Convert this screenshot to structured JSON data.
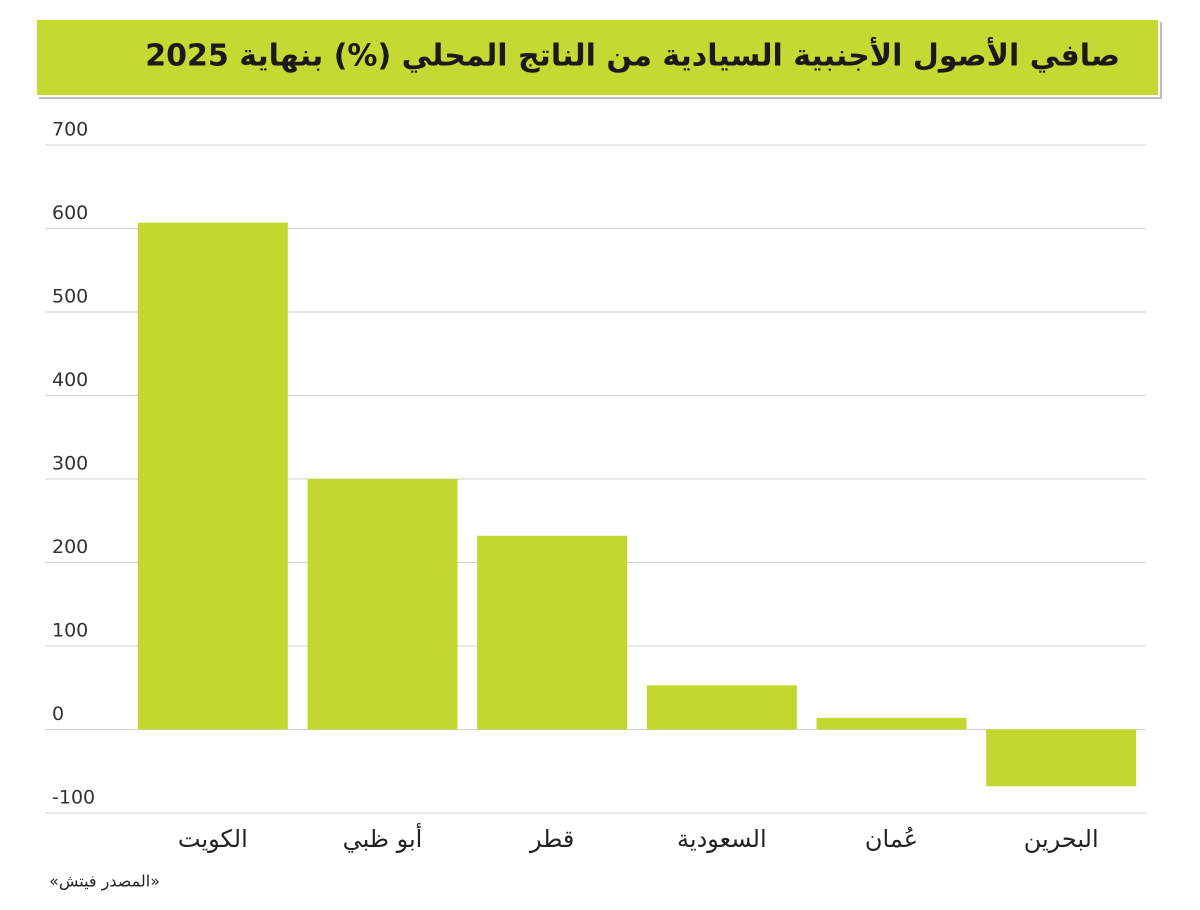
{
  "chart_data": {
    "type": "bar",
    "title": "صافي الأصول الأجنبية السيادية من الناتج المحلي (%) بنهاية 2025",
    "categories": [
      "الكويت",
      "أبو ظبي",
      "قطر",
      "السعودية",
      "عُمان",
      "البحرين"
    ],
    "values": [
      607,
      300,
      232,
      53,
      14,
      -68
    ],
    "color": "#c2d82e",
    "ylim": [
      -100,
      700
    ],
    "yticks": [
      -100,
      0,
      100,
      200,
      300,
      400,
      500,
      600,
      700
    ],
    "grid": true,
    "source": "«المصدر فيتش»"
  }
}
